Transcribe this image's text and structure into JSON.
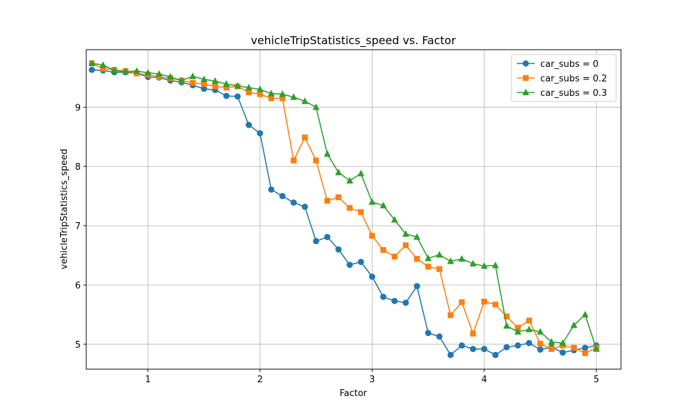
{
  "chart_data": {
    "type": "line",
    "title": "vehicleTripStatistics_speed vs. Factor",
    "xlabel": "Factor",
    "ylabel": "vehicleTripStatistics_speed",
    "xlim": [
      0.45,
      5.22
    ],
    "ylim": [
      4.58,
      9.97
    ],
    "xticks": [
      1,
      2,
      3,
      4,
      5
    ],
    "yticks": [
      5,
      6,
      7,
      8,
      9
    ],
    "grid": true,
    "legend_position": "top-right",
    "x": [
      0.5,
      0.6,
      0.7,
      0.8,
      0.9,
      1.0,
      1.1,
      1.2,
      1.3,
      1.4,
      1.5,
      1.6,
      1.7,
      1.8,
      1.9,
      2.0,
      2.1,
      2.2,
      2.3,
      2.4,
      2.5,
      2.6,
      2.7,
      2.8,
      2.9,
      3.0,
      3.1,
      3.2,
      3.3,
      3.4,
      3.5,
      3.6,
      3.7,
      3.8,
      3.9,
      4.0,
      4.1,
      4.2,
      4.3,
      4.4,
      4.5,
      4.6,
      4.7,
      4.8,
      4.9,
      5.0
    ],
    "series": [
      {
        "name": "car_subs = 0",
        "color": "#1f77b4",
        "marker": "circle",
        "values": [
          9.63,
          9.62,
          9.59,
          9.59,
          9.57,
          9.51,
          9.5,
          9.45,
          9.42,
          9.37,
          9.31,
          9.29,
          9.19,
          9.18,
          8.7,
          8.56,
          7.61,
          7.5,
          7.39,
          7.32,
          6.74,
          6.81,
          6.6,
          6.34,
          6.39,
          6.14,
          5.8,
          5.73,
          5.7,
          5.98,
          5.19,
          5.13,
          4.82,
          4.98,
          4.92,
          4.92,
          4.82,
          4.95,
          4.98,
          5.02,
          4.91,
          4.95,
          4.86,
          4.9,
          4.94,
          4.98
        ]
      },
      {
        "name": "car_subs = 0.2",
        "color": "#ff7f0e",
        "marker": "square",
        "values": [
          9.74,
          9.65,
          9.63,
          9.61,
          9.57,
          9.55,
          9.51,
          9.49,
          9.45,
          9.41,
          9.39,
          9.35,
          9.33,
          9.35,
          9.25,
          9.22,
          9.15,
          9.15,
          8.1,
          8.49,
          8.1,
          7.42,
          7.48,
          7.3,
          7.23,
          6.83,
          6.59,
          6.48,
          6.67,
          6.44,
          6.31,
          6.27,
          5.49,
          5.71,
          5.18,
          5.72,
          5.67,
          5.47,
          5.28,
          5.4,
          5.01,
          4.92,
          4.98,
          4.94,
          4.85,
          4.94
        ]
      },
      {
        "name": "car_subs = 0.3",
        "color": "#2ca02c",
        "marker": "triangle",
        "values": [
          9.74,
          9.71,
          9.62,
          9.6,
          9.61,
          9.58,
          9.56,
          9.51,
          9.45,
          9.52,
          9.47,
          9.44,
          9.39,
          9.36,
          9.33,
          9.3,
          9.23,
          9.22,
          9.17,
          9.1,
          9.0,
          8.21,
          7.9,
          7.76,
          7.88,
          7.4,
          7.34,
          7.1,
          6.86,
          6.81,
          6.45,
          6.51,
          6.4,
          6.44,
          6.36,
          6.32,
          6.33,
          5.31,
          5.21,
          5.25,
          5.21,
          5.04,
          5.02,
          5.32,
          5.5,
          4.92
        ]
      }
    ]
  }
}
